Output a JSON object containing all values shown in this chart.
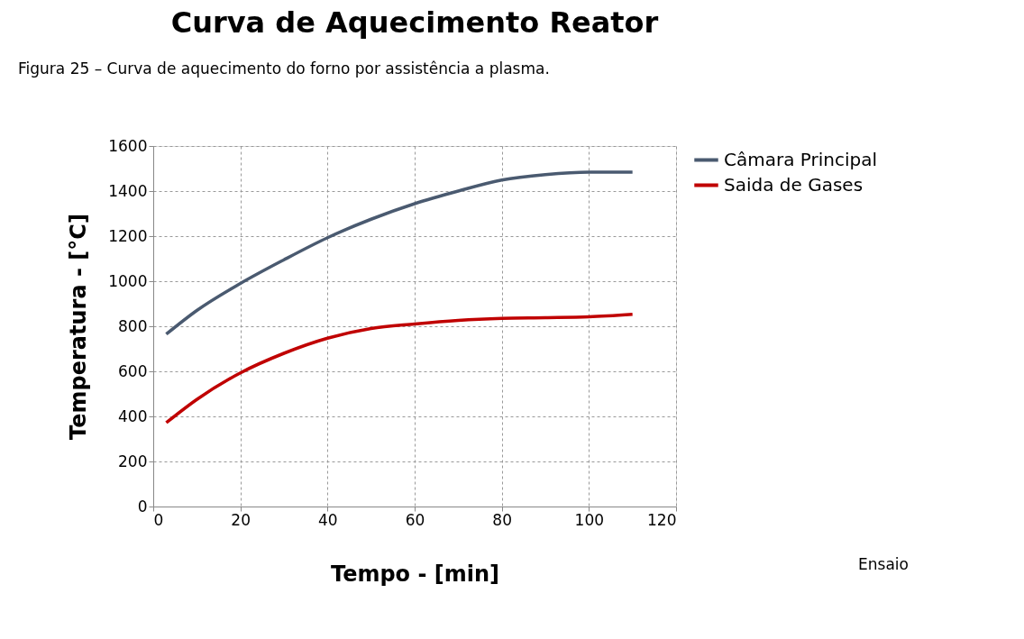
{
  "chart_data": {
    "type": "line",
    "title": "Curva de Aquecimento Reator",
    "xlabel": "Tempo - [min]",
    "ylabel": "Temperatura - [°C]",
    "annotations": [
      "Figura 25 – Curva de aquecimento do forno por assistência a plasma.",
      "Ensaio"
    ],
    "x": [
      3,
      10,
      20,
      30,
      40,
      50,
      60,
      70,
      80,
      90,
      100,
      110
    ],
    "series": [
      {
        "name": "Câmara Principal",
        "color": "#4a5a70",
        "values": [
          765,
          870,
          990,
          1095,
          1193,
          1275,
          1344,
          1400,
          1449,
          1473,
          1484,
          1484
        ]
      },
      {
        "name": "Saida de Gases",
        "color": "#c00000",
        "values": [
          372,
          475,
          593,
          680,
          747,
          790,
          810,
          826,
          835,
          838,
          842,
          853
        ]
      }
    ],
    "xlim": [
      0,
      120
    ],
    "xticks": [
      0,
      20,
      40,
      60,
      80,
      100,
      120
    ],
    "ylim": [
      0,
      1600
    ],
    "yticks": [
      0,
      200,
      400,
      600,
      800,
      1000,
      1200,
      1400,
      1600
    ],
    "grid": true,
    "legend": "right",
    "line_style": "solid",
    "marker": "none"
  }
}
